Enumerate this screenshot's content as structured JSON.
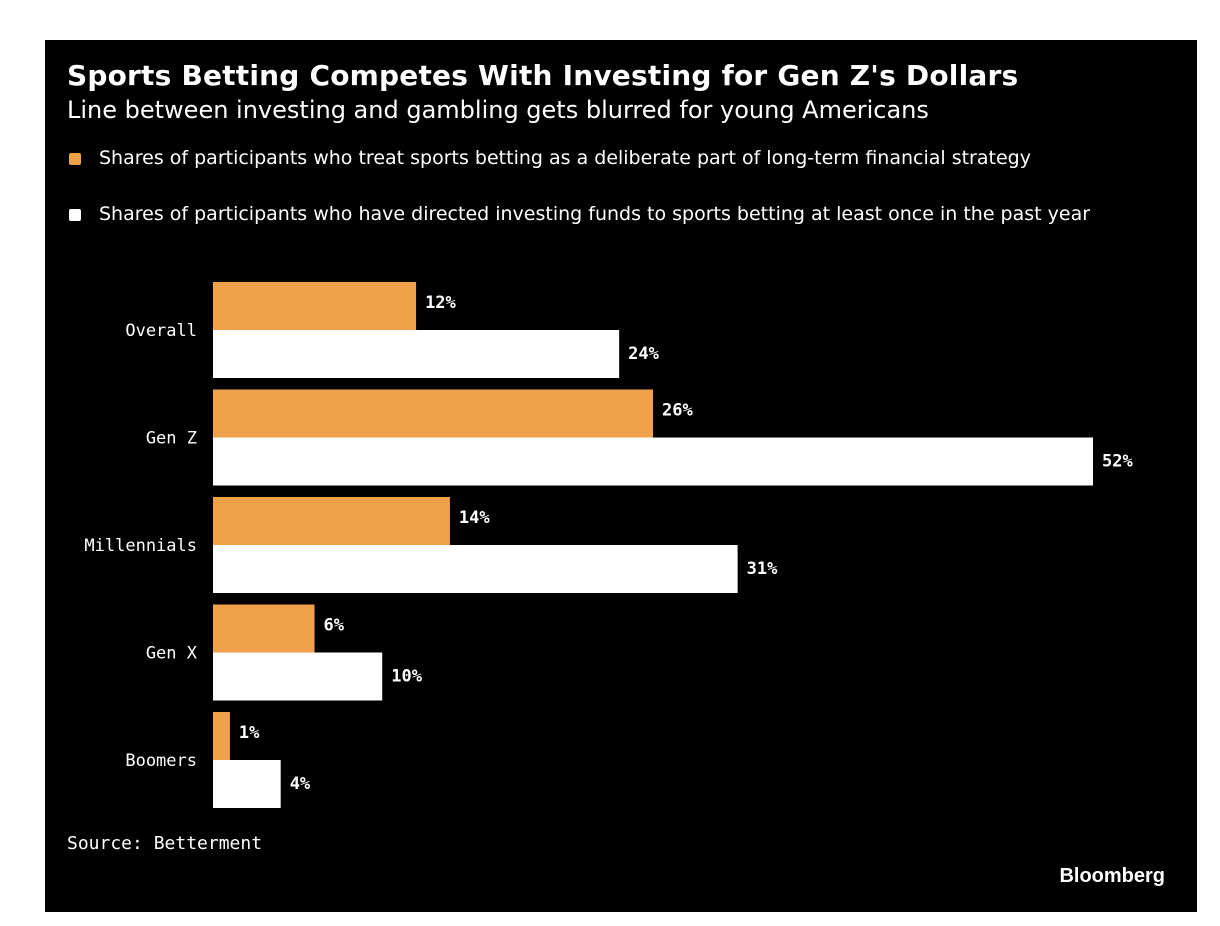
{
  "title": "Sports Betting Competes With Investing for Gen Z's Dollars",
  "subtitle": "Line between investing and gambling gets blurred for young Americans",
  "source": "Source: Betterment",
  "brand": "Bloomberg",
  "colors": {
    "background": "#000000",
    "series_0": "#f0a24a",
    "series_1": "#ffffff",
    "text": "#ffffff"
  },
  "chart_data": {
    "type": "bar",
    "orientation": "horizontal",
    "categories": [
      "Overall",
      "Gen Z",
      "Millennials",
      "Gen X",
      "Boomers"
    ],
    "series": [
      {
        "name": "Shares of participants who treat sports betting as a deliberate part of long-term financial strategy",
        "values": [
          12,
          26,
          14,
          6,
          1
        ],
        "labels": [
          "12%",
          "26%",
          "14%",
          "6%",
          "1%"
        ],
        "color": "#f0a24a"
      },
      {
        "name": "Shares of participants who have directed investing funds to sports betting at least once in the past year",
        "values": [
          24,
          52,
          31,
          10,
          4
        ],
        "labels": [
          "24%",
          "52%",
          "31%",
          "10%",
          "4%"
        ],
        "color": "#ffffff"
      }
    ],
    "unit": "%",
    "xlim": [
      0,
      52
    ],
    "grid": false,
    "legend_position": "top"
  }
}
